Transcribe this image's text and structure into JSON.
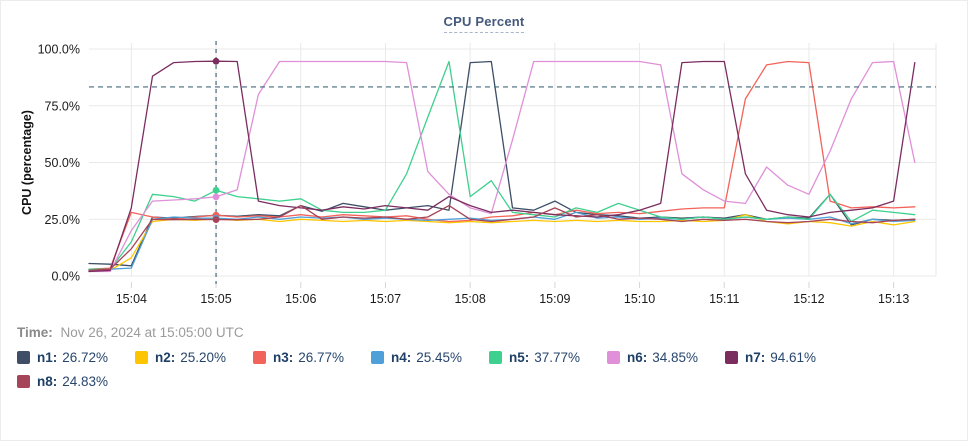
{
  "header": {
    "title": "CPU Percent"
  },
  "time_row": {
    "label": "Time:",
    "value": "Nov 26, 2024 at 15:05:00 UTC"
  },
  "chart_data": {
    "type": "line",
    "title": "CPU Percent",
    "xlabel": "",
    "ylabel": "CPU (percentage)",
    "ylim": [
      0,
      100
    ],
    "grid": true,
    "legend_position": "bottom",
    "yticks": [
      {
        "value": 0,
        "label": "0.0%"
      },
      {
        "value": 25,
        "label": "25.0%"
      },
      {
        "value": 50,
        "label": "50.0%"
      },
      {
        "value": 75,
        "label": "75.0%"
      },
      {
        "value": 100,
        "label": "100.0%"
      }
    ],
    "x_domain_seconds": [
      0,
      600
    ],
    "x_start_time": "15:03:30",
    "sample_step_seconds": 15,
    "x_ticks": [
      {
        "t": 30,
        "label": "15:04"
      },
      {
        "t": 90,
        "label": "15:05"
      },
      {
        "t": 150,
        "label": "15:06"
      },
      {
        "t": 210,
        "label": "15:07"
      },
      {
        "t": 270,
        "label": "15:08"
      },
      {
        "t": 330,
        "label": "15:09"
      },
      {
        "t": 390,
        "label": "15:10"
      },
      {
        "t": 450,
        "label": "15:11"
      },
      {
        "t": 510,
        "label": "15:12"
      },
      {
        "t": 570,
        "label": "15:13"
      }
    ],
    "x_extra_gridlines": [
      600
    ],
    "threshold_value": 83.3,
    "threshold_color": "#44697d",
    "crosshair": {
      "t": 90,
      "time_label": "15:05",
      "color": "#44697d"
    },
    "series": [
      {
        "name": "n1",
        "color": "#3d4e66",
        "display_value": "26.72%",
        "values": [
          5.5,
          5.2,
          4.5,
          26,
          25.5,
          26.2,
          26.72,
          26.3,
          27,
          26.5,
          31,
          28.5,
          32,
          30.5,
          29,
          30,
          31,
          29,
          94,
          94.5,
          30,
          29,
          33,
          28,
          27,
          26.5,
          25.5,
          26,
          25.5,
          26,
          25.5,
          27,
          25,
          26,
          25.5,
          36,
          22.5,
          25,
          24.5,
          25
        ]
      },
      {
        "name": "n2",
        "color": "#fdc500",
        "display_value": "25.20%",
        "values": [
          2,
          2.5,
          8,
          24,
          25,
          24.5,
          25.2,
          24.5,
          25,
          24,
          25,
          24.5,
          24,
          24.5,
          24,
          24.5,
          24,
          23.5,
          24,
          23.5,
          24,
          24.5,
          24,
          24.5,
          24,
          24.5,
          24,
          24,
          24.5,
          24,
          24.5,
          27,
          24,
          23,
          24,
          23.5,
          22,
          24,
          22.5,
          24
        ]
      },
      {
        "name": "n3",
        "color": "#f2635a",
        "display_value": "26.77%",
        "values": [
          3,
          3.5,
          28,
          26,
          25,
          26,
          26.77,
          26,
          26.5,
          26,
          27,
          26,
          27,
          26.5,
          26,
          26.5,
          25,
          24,
          24.5,
          26,
          26.5,
          28,
          27,
          29,
          27.5,
          28,
          27.5,
          28.5,
          29.5,
          30,
          30,
          78,
          93,
          94.5,
          94,
          33,
          30,
          30.5,
          30,
          30.5
        ]
      },
      {
        "name": "n4",
        "color": "#4fa0d8",
        "display_value": "25.45%",
        "values": [
          2.5,
          3,
          3.5,
          25,
          26,
          25.5,
          25.45,
          25,
          26,
          25,
          26,
          25.5,
          26,
          25,
          25.5,
          25,
          24.5,
          25,
          25.5,
          24.5,
          25,
          26,
          25,
          28,
          25.5,
          26,
          25,
          25.5,
          25,
          26,
          25,
          26,
          25,
          25.5,
          25,
          26,
          23,
          25,
          24,
          24.5
        ]
      },
      {
        "name": "n5",
        "color": "#3ed08e",
        "display_value": "37.77%",
        "values": [
          3,
          3,
          15,
          36,
          35,
          33,
          37.77,
          35,
          34,
          33,
          34,
          29,
          28,
          28,
          29,
          45,
          70,
          94.5,
          35,
          42,
          28,
          27,
          26,
          30,
          28,
          32,
          29,
          26,
          25,
          26,
          25,
          26,
          25,
          26,
          25,
          36,
          24,
          29,
          28,
          27
        ]
      },
      {
        "name": "n6",
        "color": "#df90d8",
        "display_value": "34.85%",
        "values": [
          2,
          2,
          20,
          33,
          33.5,
          34,
          34.85,
          38,
          80,
          94.5,
          94.5,
          94.5,
          94.5,
          94.5,
          94.5,
          94,
          46,
          36,
          30,
          27.5,
          60,
          94.5,
          94.5,
          94.5,
          94.5,
          94.5,
          94.5,
          93,
          45,
          38,
          33,
          32,
          48,
          40,
          36,
          55,
          78,
          94,
          94.5,
          50
        ]
      },
      {
        "name": "n7",
        "color": "#7b2d60",
        "display_value": "94.61%",
        "values": [
          2,
          2.5,
          30,
          88,
          94,
          94.5,
          94.61,
          94.5,
          33,
          31,
          30,
          29,
          30.5,
          29.5,
          31,
          30,
          29,
          35,
          31,
          28,
          29,
          28,
          27,
          26.5,
          26,
          27,
          29,
          32,
          94,
          94.5,
          94.5,
          45,
          29,
          27,
          26,
          28,
          29,
          30,
          33,
          94
        ]
      },
      {
        "name": "n8",
        "color": "#a64458",
        "display_value": "24.83%",
        "values": [
          2.5,
          3,
          12,
          25,
          24.8,
          25,
          24.83,
          24.8,
          25,
          26,
          31,
          25,
          26,
          25.5,
          26,
          25,
          26,
          31,
          25,
          24,
          25,
          26,
          30,
          26,
          27,
          25,
          25.5,
          25,
          24,
          25,
          24.5,
          25,
          24,
          23.5,
          24,
          25,
          24,
          23.5,
          24.5,
          25
        ]
      }
    ]
  },
  "style": {
    "grid_color": "#e9e9e9",
    "tick_color": "#d5d5d5",
    "axis_text_color": "#1b1b1b"
  }
}
